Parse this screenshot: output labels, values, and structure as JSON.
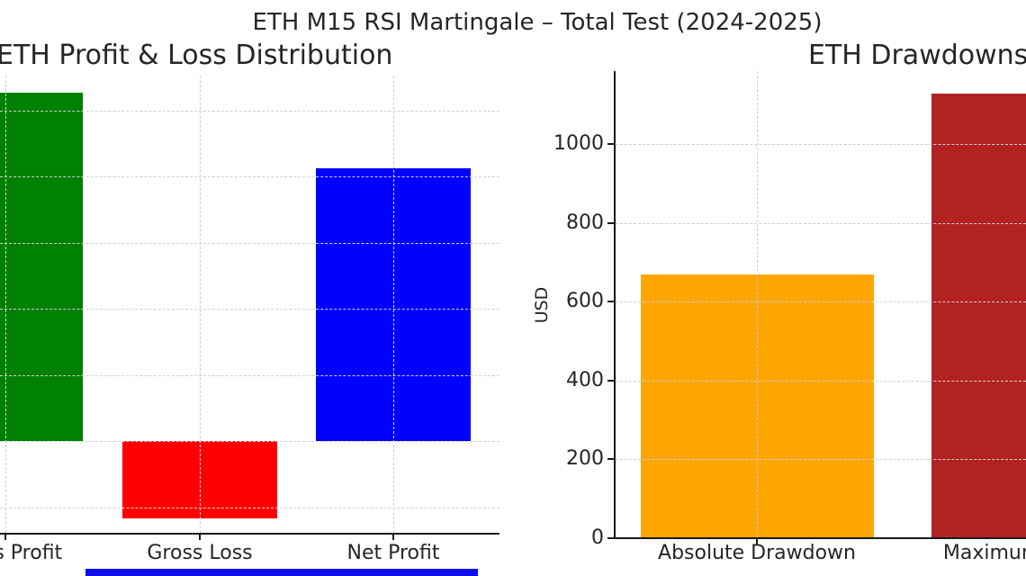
{
  "figure": {
    "suptitle": "ETH M15 RSI Martingale – Total Test (2024-2025)"
  },
  "chart_data": [
    {
      "type": "bar",
      "title": "ETH Profit & Loss Distribution",
      "categories": [
        "Gross Profit",
        "Gross Loss",
        "Net Profit"
      ],
      "values": [
        5.27,
        -1.17,
        4.12
      ],
      "value_units": "gridline-units (y-axis tick labels are cropped out of the frame; 1 unit = 1 gridline spacing, 0 = bar baseline)",
      "bar_colors": [
        "#008000",
        "#ff0000",
        "#0000ff"
      ],
      "ylim": [
        -1.43,
        5.62
      ],
      "xlabel": "",
      "ylabel": "",
      "grid": "dashed gridlines on both axes, drawn over bars",
      "legend": "none",
      "notes": "Left side of the subplot (y-axis and part of the Gross Profit bar/label) is cropped off-screen; only 's Profit' of the first label is visible."
    },
    {
      "type": "bar",
      "title": "ETH Drawdowns",
      "categories": [
        "Absolute Drawdown",
        "Maximum Drawdown"
      ],
      "values": [
        668,
        1127
      ],
      "bar_colors": [
        "#ffa500",
        "#b22222"
      ],
      "xlabel": "",
      "ylabel": "USD",
      "yticks": [
        0,
        200,
        400,
        600,
        800,
        1000
      ],
      "ylim": [
        0,
        1185
      ],
      "grid": "dashed gridlines on both axes, drawn over bars",
      "legend": "none",
      "notes": "Right side of the subplot is cropped; 'Maximum Drawdown' bar and label are partially visible (shows 'Maxim')."
    }
  ],
  "colors": {
    "background": "#ffffff",
    "text": "#262626",
    "spine": "#1a1a1a",
    "grid": "#cfcfcf"
  },
  "bottom_strip": {
    "color": "#0d0dee"
  }
}
